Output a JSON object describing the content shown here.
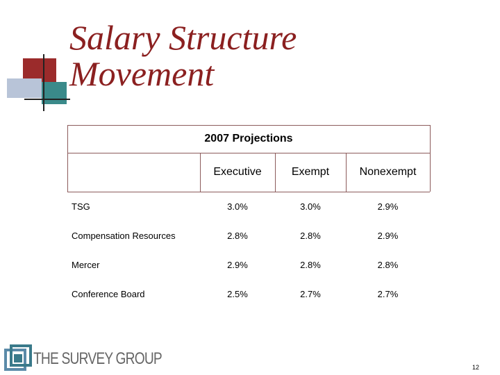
{
  "slide": {
    "title_lines": [
      "Salary Structure",
      "Movement"
    ],
    "page_number": "12"
  },
  "table": {
    "caption": "2007 Projections",
    "columns": [
      "Executive",
      "Exempt",
      "Nonexempt"
    ],
    "rows": [
      {
        "label": "TSG",
        "cells": [
          "3.0%",
          "3.0%",
          "2.9%"
        ]
      },
      {
        "label": "Compensation Resources",
        "cells": [
          "2.8%",
          "2.8%",
          "2.9%"
        ]
      },
      {
        "label": "Mercer",
        "cells": [
          "2.9%",
          "2.8%",
          "2.8%"
        ]
      },
      {
        "label": "Conference Board",
        "cells": [
          "2.5%",
          "2.7%",
          "2.7%"
        ]
      }
    ]
  },
  "logo": {
    "text": "THE SURVEY GROUP"
  }
}
